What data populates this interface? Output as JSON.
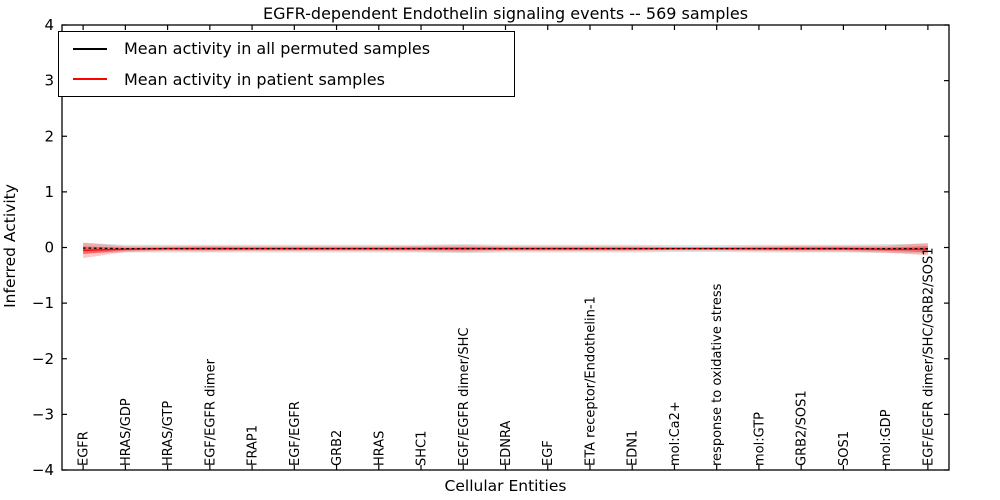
{
  "title": "EGFR-dependent Endothelin signaling events -- 569 samples",
  "axes": {
    "ylabel": "Inferred Activity",
    "xlabel": "Cellular Entities",
    "yticks": [
      -4,
      -3,
      -2,
      -1,
      0,
      1,
      2,
      3,
      4
    ],
    "ylim": [
      -4,
      4
    ]
  },
  "legend": {
    "items": [
      {
        "label": "Mean activity in all permuted samples",
        "color": "#000000"
      },
      {
        "label": "Mean activity in patient samples",
        "color": "#ff0000"
      }
    ]
  },
  "colors": {
    "frame": "#000000",
    "background": "#ffffff",
    "permuted_line": "#000000",
    "patient_line": "#ff0000",
    "permuted_band_fill": "rgba(110,110,110,0.22)",
    "patient_band_fill": "rgba(255,0,0,0.22)",
    "patient_band_inner_fill": "rgba(255,0,0,0.38)"
  },
  "chart_data": {
    "type": "line",
    "title": "EGFR-dependent Endothelin signaling events -- 569 samples",
    "xlabel": "Cellular Entities",
    "ylabel": "Inferred Activity",
    "ylim": [
      -4,
      4
    ],
    "grid": false,
    "legend_position": "upper left",
    "categories": [
      "EGFR",
      "HRAS/GDP",
      "HRAS/GTP",
      "EGF/EGFR dimer",
      "FRAP1",
      "EGF/EGFR",
      "GRB2",
      "HRAS",
      "SHC1",
      "EGF/EGFR dimer/SHC",
      "EDNRA",
      "EGF",
      "ETA receptor/Endothelin-1",
      "EDN1",
      "mol:Ca2+",
      "response to oxidative stress",
      "mol:GTP",
      "GRB2/SOS1",
      "SOS1",
      "mol:GDP",
      "EGF/EGFR dimer/SHC/GRB2/SOS1"
    ],
    "series": [
      {
        "name": "Mean activity in all permuted samples",
        "style": "dashed",
        "color": "#000000",
        "values": [
          -0.01,
          -0.02,
          -0.02,
          -0.02,
          -0.02,
          -0.02,
          -0.02,
          -0.02,
          -0.02,
          -0.02,
          -0.02,
          -0.02,
          -0.02,
          -0.02,
          -0.02,
          -0.02,
          -0.02,
          -0.02,
          -0.02,
          -0.02,
          -0.02
        ],
        "band_halfwidth": [
          0.09,
          0.07,
          0.07,
          0.07,
          0.07,
          0.07,
          0.07,
          0.07,
          0.07,
          0.08,
          0.07,
          0.07,
          0.07,
          0.07,
          0.06,
          0.06,
          0.07,
          0.07,
          0.07,
          0.08,
          0.09
        ]
      },
      {
        "name": "Mean activity in patient samples",
        "style": "solid",
        "color": "#ff0000",
        "values": [
          -0.05,
          -0.03,
          -0.02,
          -0.02,
          -0.02,
          -0.02,
          -0.02,
          -0.02,
          -0.02,
          -0.02,
          -0.02,
          -0.02,
          -0.02,
          -0.02,
          -0.02,
          -0.02,
          -0.02,
          -0.02,
          -0.02,
          -0.03,
          -0.03
        ],
        "band_halfwidth": [
          0.14,
          0.05,
          0.04,
          0.05,
          0.04,
          0.04,
          0.04,
          0.04,
          0.05,
          0.06,
          0.04,
          0.04,
          0.04,
          0.04,
          0.03,
          0.03,
          0.04,
          0.05,
          0.05,
          0.06,
          0.11
        ]
      }
    ]
  }
}
